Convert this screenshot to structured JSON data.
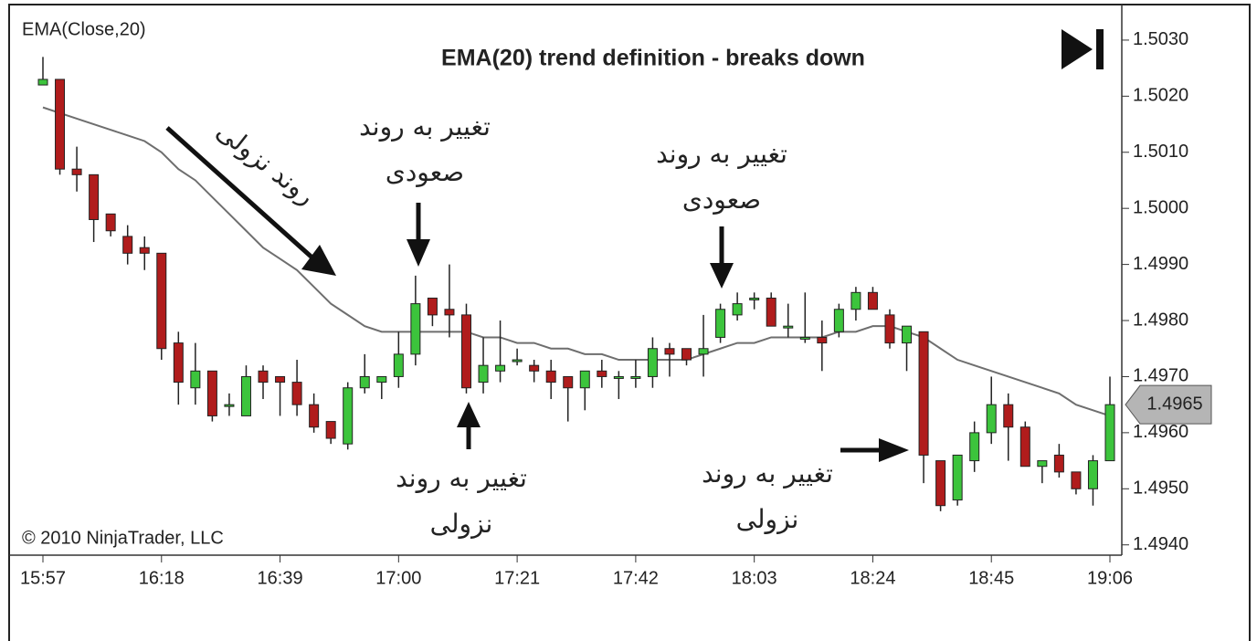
{
  "chart_data": {
    "type": "candlestick",
    "title": "EMA(20) trend definition - breaks down",
    "copyright": "© 2010 NinjaTrader, LLC",
    "categories": [
      "15:57",
      null,
      null,
      null,
      null,
      null,
      null,
      "16:18",
      null,
      null,
      null,
      null,
      null,
      null,
      "16:39",
      null,
      null,
      null,
      null,
      null,
      null,
      "17:00",
      null,
      null,
      null,
      null,
      null,
      null,
      "17:21",
      null,
      null,
      null,
      null,
      null,
      null,
      "17:42",
      null,
      null,
      null,
      null,
      null,
      null,
      "18:03",
      null,
      null,
      null,
      null,
      null,
      null,
      "18:24",
      null,
      null,
      null,
      null,
      null,
      null,
      "18:45",
      null,
      null,
      null,
      null,
      null,
      null,
      "19:06"
    ],
    "open": [
      1.5022,
      1.5023,
      1.5007,
      1.5006,
      1.4999,
      1.4995,
      1.4993,
      1.4992,
      1.4976,
      1.4968,
      1.4971,
      1.4965,
      1.4963,
      1.4971,
      1.497,
      1.4969,
      1.4965,
      1.4962,
      1.4958,
      1.4968,
      1.4969,
      1.497,
      1.4974,
      1.4984,
      1.4982,
      1.4981,
      1.4969,
      1.4971,
      1.4973,
      1.4972,
      1.4971,
      1.497,
      1.4968,
      1.4971,
      1.497,
      1.497,
      1.497,
      1.4975,
      1.4975,
      1.4974,
      1.4977,
      1.4981,
      1.4984,
      1.4984,
      1.4979,
      1.4977,
      1.4977,
      1.4978,
      1.4982,
      1.4985,
      1.4981,
      1.4976,
      1.4978,
      1.4955,
      1.4948,
      1.4955,
      1.496,
      1.4965,
      1.4961,
      1.4954,
      1.4956,
      1.4953,
      1.495,
      1.4955
    ],
    "high": [
      1.5027,
      1.5023,
      1.5011,
      1.5006,
      1.4999,
      1.4997,
      1.4995,
      1.4992,
      1.4978,
      1.4976,
      1.4971,
      1.4967,
      1.4972,
      1.4972,
      1.497,
      1.4973,
      1.4967,
      1.4962,
      1.4969,
      1.4974,
      1.497,
      1.4978,
      1.4988,
      1.4984,
      1.499,
      1.4983,
      1.4977,
      1.498,
      1.4975,
      1.4973,
      1.4973,
      1.497,
      1.4971,
      1.4973,
      1.4971,
      1.4973,
      1.4977,
      1.4976,
      1.4975,
      1.4981,
      1.4983,
      1.4985,
      1.4985,
      1.4985,
      1.4983,
      1.4985,
      1.498,
      1.4983,
      1.4986,
      1.4986,
      1.4982,
      1.4979,
      1.4978,
      1.4955,
      1.4956,
      1.4962,
      1.497,
      1.4967,
      1.4962,
      1.4955,
      1.4958,
      1.4953,
      1.4956,
      1.497
    ],
    "low": [
      1.5022,
      1.5006,
      1.5003,
      1.4994,
      1.4995,
      1.499,
      1.4989,
      1.4973,
      1.4965,
      1.4965,
      1.4962,
      1.4963,
      1.4963,
      1.4966,
      1.4963,
      1.4963,
      1.496,
      1.4958,
      1.4957,
      1.4967,
      1.4966,
      1.4968,
      1.4972,
      1.4979,
      1.4977,
      1.4967,
      1.4967,
      1.4969,
      1.4972,
      1.4969,
      1.4966,
      1.4962,
      1.4964,
      1.4968,
      1.4966,
      1.4968,
      1.4968,
      1.497,
      1.4972,
      1.497,
      1.4976,
      1.498,
      1.4982,
      1.4979,
      1.4977,
      1.4976,
      1.4971,
      1.4977,
      1.498,
      1.4982,
      1.4975,
      1.4971,
      1.4951,
      1.4946,
      1.4947,
      1.4953,
      1.4958,
      1.4955,
      1.4954,
      1.4951,
      1.4952,
      1.4949,
      1.4947,
      1.4955
    ],
    "close": [
      1.5023,
      1.5007,
      1.5006,
      1.4998,
      1.4996,
      1.4992,
      1.4992,
      1.4975,
      1.4969,
      1.4971,
      1.4963,
      1.4965,
      1.497,
      1.4969,
      1.4969,
      1.4965,
      1.4961,
      1.4959,
      1.4968,
      1.497,
      1.497,
      1.4974,
      1.4983,
      1.4981,
      1.4981,
      1.4968,
      1.4972,
      1.4972,
      1.4973,
      1.4971,
      1.4969,
      1.4968,
      1.4971,
      1.497,
      1.497,
      1.497,
      1.4975,
      1.4974,
      1.4973,
      1.4975,
      1.4982,
      1.4983,
      1.4984,
      1.4979,
      1.4979,
      1.4977,
      1.4976,
      1.4982,
      1.4985,
      1.4982,
      1.4976,
      1.4979,
      1.4956,
      1.4947,
      1.4956,
      1.496,
      1.4965,
      1.4961,
      1.4954,
      1.4955,
      1.4953,
      1.495,
      1.4955,
      1.4965
    ],
    "up_color": "#3cc43c",
    "down_color": "#b01c1c",
    "series": [
      {
        "name": "EMA(Close,20)",
        "color": "#6e6e6e",
        "values": [
          1.5018,
          1.5017,
          1.5016,
          1.5015,
          1.5014,
          1.5013,
          1.5012,
          1.501,
          1.5007,
          1.5005,
          1.5002,
          1.4999,
          1.4996,
          1.4993,
          1.4991,
          1.4989,
          1.4986,
          1.4983,
          1.4981,
          1.4979,
          1.4978,
          1.4978,
          1.4978,
          1.4978,
          1.4978,
          1.4978,
          1.4977,
          1.4977,
          1.4976,
          1.4976,
          1.4975,
          1.4975,
          1.4974,
          1.4974,
          1.4973,
          1.4973,
          1.4973,
          1.4973,
          1.4973,
          1.4974,
          1.4975,
          1.4976,
          1.4976,
          1.4977,
          1.4977,
          1.4977,
          1.4977,
          1.4978,
          1.4978,
          1.4979,
          1.4979,
          1.4978,
          1.4977,
          1.4975,
          1.4973,
          1.4972,
          1.4971,
          1.497,
          1.4969,
          1.4968,
          1.4967,
          1.4965,
          1.4964,
          1.4963
        ]
      }
    ],
    "ylim": [
      1.4938,
      1.50365
    ],
    "yticks": [
      {
        "value": 1.503,
        "label": "1.5030"
      },
      {
        "value": 1.502,
        "label": "1.5020"
      },
      {
        "value": 1.501,
        "label": "1.5010"
      },
      {
        "value": 1.5,
        "label": "1.5000"
      },
      {
        "value": 1.499,
        "label": "1.4990"
      },
      {
        "value": 1.498,
        "label": "1.4980"
      },
      {
        "value": 1.497,
        "label": "1.4970"
      },
      {
        "value": 1.496,
        "label": "1.4960"
      },
      {
        "value": 1.495,
        "label": "1.4950"
      },
      {
        "value": 1.494,
        "label": "1.4940"
      }
    ],
    "current_price": {
      "value": 1.4965,
      "label": "1.4965"
    },
    "annotations": [
      {
        "lines": [
          "تغییر به روند",
          "صعودی"
        ]
      },
      {
        "lines": [
          "تغییر به روند",
          "نزولی"
        ]
      },
      {
        "lines": [
          "تغییر به روند",
          "صعودی"
        ]
      },
      {
        "lines": [
          "تغییر به روند",
          "نزولی"
        ]
      },
      {
        "lines": [
          "روند نزولی"
        ]
      }
    ]
  }
}
